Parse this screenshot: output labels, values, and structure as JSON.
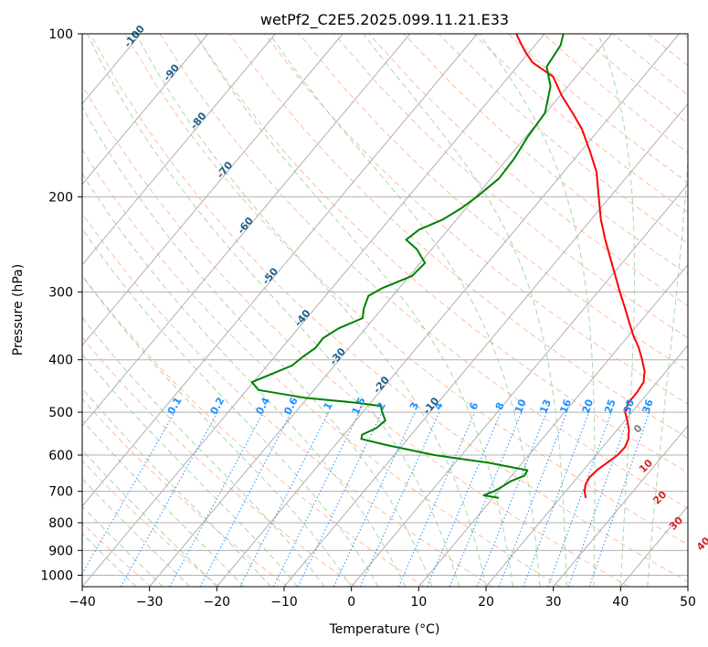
{
  "chart_data": {
    "type": "line",
    "title": "wetPf2_C2E5.2025.099.11.21.E33",
    "xlabel": "Temperature (°C)",
    "ylabel": "Pressure (hPa)",
    "xlim": [
      -40,
      50
    ],
    "ylim": [
      1050,
      100
    ],
    "y_scale": "log",
    "x_ticks": [
      -40,
      -30,
      -20,
      -10,
      0,
      10,
      20,
      30,
      40,
      50
    ],
    "y_ticks": [
      100,
      200,
      300,
      400,
      500,
      600,
      700,
      800,
      900,
      1000
    ],
    "grid": true,
    "series": [
      {
        "color": "#ff0000",
        "points": [
          {
            "p": 720,
            "t": 23.8
          },
          {
            "p": 700,
            "t": 22.8
          },
          {
            "p": 680,
            "t": 22.1
          },
          {
            "p": 660,
            "t": 21.8
          },
          {
            "p": 640,
            "t": 22.0
          },
          {
            "p": 620,
            "t": 22.6
          },
          {
            "p": 600,
            "t": 23.2
          },
          {
            "p": 580,
            "t": 23.3
          },
          {
            "p": 560,
            "t": 22.8
          },
          {
            "p": 540,
            "t": 21.8
          },
          {
            "p": 520,
            "t": 20.5
          },
          {
            "p": 500,
            "t": 19.0
          },
          {
            "p": 480,
            "t": 18.3
          },
          {
            "p": 460,
            "t": 18.3
          },
          {
            "p": 440,
            "t": 18.0
          },
          {
            "p": 420,
            "t": 16.8
          },
          {
            "p": 400,
            "t": 15.0
          },
          {
            "p": 380,
            "t": 13.0
          },
          {
            "p": 360,
            "t": 10.6
          },
          {
            "p": 340,
            "t": 8.3
          },
          {
            "p": 320,
            "t": 5.9
          },
          {
            "p": 300,
            "t": 3.3
          },
          {
            "p": 280,
            "t": 0.6
          },
          {
            "p": 260,
            "t": -2.3
          },
          {
            "p": 240,
            "t": -5.4
          },
          {
            "p": 220,
            "t": -8.6
          },
          {
            "p": 200,
            "t": -11.7
          },
          {
            "p": 180,
            "t": -15.1
          },
          {
            "p": 165,
            "t": -18.6
          },
          {
            "p": 150,
            "t": -22.6
          },
          {
            "p": 140,
            "t": -26.0
          },
          {
            "p": 130,
            "t": -29.8
          },
          {
            "p": 120,
            "t": -33.4
          },
          {
            "p": 113,
            "t": -38.2
          },
          {
            "p": 108,
            "t": -40.6
          },
          {
            "p": 104,
            "t": -42.4
          },
          {
            "p": 100,
            "t": -44.2
          }
        ]
      },
      {
        "color": "#008000",
        "points": [
          {
            "p": 720,
            "t": 10.9
          },
          {
            "p": 712,
            "t": 8.3
          },
          {
            "p": 700,
            "t": 9.3
          },
          {
            "p": 685,
            "t": 10.0
          },
          {
            "p": 670,
            "t": 10.6
          },
          {
            "p": 655,
            "t": 11.9
          },
          {
            "p": 640,
            "t": 11.7
          },
          {
            "p": 620,
            "t": 5.0
          },
          {
            "p": 600,
            "t": -4.0
          },
          {
            "p": 575,
            "t": -12.3
          },
          {
            "p": 560,
            "t": -16.9
          },
          {
            "p": 550,
            "t": -17.3
          },
          {
            "p": 535,
            "t": -16.0
          },
          {
            "p": 518,
            "t": -15.6
          },
          {
            "p": 500,
            "t": -17.1
          },
          {
            "p": 487,
            "t": -18.1
          },
          {
            "p": 480,
            "t": -22.3
          },
          {
            "p": 470,
            "t": -30.5
          },
          {
            "p": 455,
            "t": -38.2
          },
          {
            "p": 440,
            "t": -40.2
          },
          {
            "p": 425,
            "t": -38.3
          },
          {
            "p": 410,
            "t": -36.3
          },
          {
            "p": 395,
            "t": -35.8
          },
          {
            "p": 380,
            "t": -35.0
          },
          {
            "p": 365,
            "t": -35.1
          },
          {
            "p": 350,
            "t": -34.0
          },
          {
            "p": 335,
            "t": -31.7
          },
          {
            "p": 322,
            "t": -32.7
          },
          {
            "p": 305,
            "t": -33.6
          },
          {
            "p": 295,
            "t": -32.5
          },
          {
            "p": 280,
            "t": -29.6
          },
          {
            "p": 265,
            "t": -29.3
          },
          {
            "p": 250,
            "t": -32.2
          },
          {
            "p": 240,
            "t": -35.0
          },
          {
            "p": 230,
            "t": -34.3
          },
          {
            "p": 220,
            "t": -32.0
          },
          {
            "p": 210,
            "t": -30.7
          },
          {
            "p": 200,
            "t": -29.8
          },
          {
            "p": 185,
            "t": -28.8
          },
          {
            "p": 170,
            "t": -29.0
          },
          {
            "p": 155,
            "t": -29.7
          },
          {
            "p": 140,
            "t": -30.1
          },
          {
            "p": 125,
            "t": -32.6
          },
          {
            "p": 115,
            "t": -35.6
          },
          {
            "p": 105,
            "t": -36.2
          },
          {
            "p": 100,
            "t": -37.2
          }
        ]
      }
    ],
    "isotherm_labels": [
      {
        "t": -100,
        "p": 102
      },
      {
        "t": -90,
        "p": 119
      },
      {
        "t": -80,
        "p": 146
      },
      {
        "t": -70,
        "p": 180
      },
      {
        "t": -60,
        "p": 228
      },
      {
        "t": -50,
        "p": 283
      },
      {
        "t": -40,
        "p": 338
      },
      {
        "t": -30,
        "p": 398
      },
      {
        "t": -20,
        "p": 449
      },
      {
        "t": -10,
        "p": 491
      }
    ],
    "moist_adiabat_labels": [
      {
        "text": "0",
        "t": 23.6,
        "p": 542,
        "color": "#7f7f7f"
      },
      {
        "text": "10",
        "t": 29.4,
        "p": 635,
        "color": "#d62728"
      },
      {
        "text": "20",
        "t": 35.4,
        "p": 726,
        "color": "#d62728"
      },
      {
        "text": "30",
        "t": 41.0,
        "p": 810,
        "color": "#d62728"
      },
      {
        "text": "40",
        "t": 47.6,
        "p": 884,
        "color": "#d62728"
      }
    ],
    "mixing_ratio_labels": [
      "0.1",
      "0.2",
      "0.4",
      "0.6",
      "1",
      "1.5",
      "2",
      "3",
      "4",
      "6",
      "8",
      "10",
      "13",
      "16",
      "20",
      "25",
      "30",
      "36"
    ]
  },
  "colors": {
    "isotherm": "#1f5f8b",
    "mixing_ratio": "#1e90ff",
    "dry_adiabat": "#ffa07a",
    "moist_adiabat": "#90c890",
    "grid": "#b0b0b0"
  }
}
